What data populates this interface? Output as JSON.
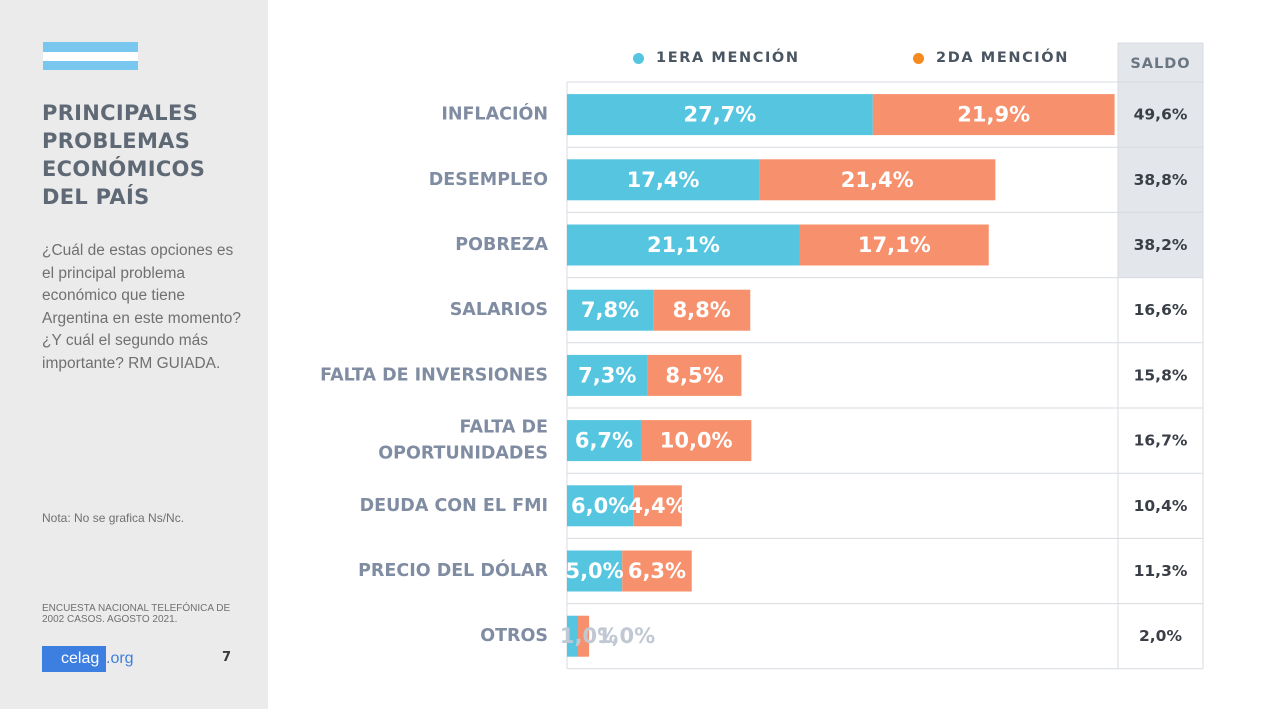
{
  "sidebar": {
    "title": "PRINCIPALES PROBLEMAS ECONÓMICOS DEL PAÍS",
    "question": "¿Cuál de estas opciones es el principal problema económico que tiene Argentina en este momento? ¿Y cuál el segundo más importante? RM GUIADA.",
    "note": "Nota: No se grafica Ns/Nc.",
    "source": "ENCUESTA NACIONAL TELEFÓNICA DE 2002 CASOS. AGOSTO 2021.",
    "logo_main": "celag",
    "logo_tld": ".org",
    "page_number": "7",
    "flag_colors": {
      "blue": "#79c6ee",
      "white": "#ffffff"
    }
  },
  "colors": {
    "first": "#56c5e0",
    "second": "#f7906c",
    "label": "#7f8ca2",
    "saldo_highlight": "#e3e6ea",
    "grid": "#d7dbe0"
  },
  "chart_data": {
    "type": "bar",
    "orientation": "horizontal",
    "stacked": true,
    "categories": [
      [
        "INFLACIÓN"
      ],
      [
        "DESEMPLEO"
      ],
      [
        "POBREZA"
      ],
      [
        "SALARIOS"
      ],
      [
        "FALTA DE INVERSIONES"
      ],
      [
        "FALTA DE",
        "OPORTUNIDADES"
      ],
      [
        "DEUDA CON EL FMI"
      ],
      [
        "PRECIO DEL DÓLAR"
      ],
      [
        "OTROS"
      ]
    ],
    "series": [
      {
        "name": "1ERA MENCIÓN",
        "values": [
          27.7,
          17.4,
          21.1,
          7.8,
          7.3,
          6.7,
          6.0,
          5.0,
          1.0
        ],
        "labels": [
          "27,7%",
          "17,4%",
          "21,1%",
          "7,8%",
          "7,3%",
          "6,7%",
          "6,0%",
          "5,0%",
          "1,0%"
        ]
      },
      {
        "name": "2DA MENCIÓN",
        "values": [
          21.9,
          21.4,
          17.1,
          8.8,
          8.5,
          10.0,
          4.4,
          6.3,
          1.0
        ],
        "labels": [
          "21,9%",
          "21,4%",
          "17,1%",
          "8,8%",
          "8,5%",
          "10,0%",
          "4,4%",
          "6,3%",
          "1,0%"
        ]
      }
    ],
    "saldo_header": "SALDO",
    "saldo": [
      "49,6%",
      "38,8%",
      "38,2%",
      "16,6%",
      "15,8%",
      "16,7%",
      "10,4%",
      "11,3%",
      "2,0%"
    ],
    "saldo_highlighted_count": 3
  }
}
